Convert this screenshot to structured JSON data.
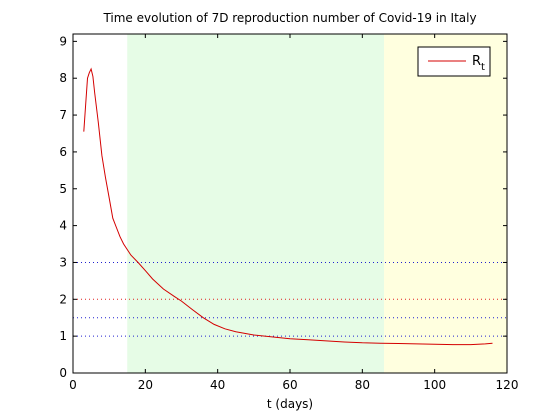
{
  "chart_data": {
    "type": "line",
    "title": "Time evolution of 7D reproduction number of Covid-19 in Italy",
    "xlabel": "t (days)",
    "ylabel": "",
    "xlim": [
      0,
      120
    ],
    "ylim": [
      0,
      9.2
    ],
    "xticks": [
      0,
      20,
      40,
      60,
      80,
      100,
      120
    ],
    "yticks": [
      0,
      1,
      2,
      3,
      4,
      5,
      6,
      7,
      8,
      9
    ],
    "grid": false,
    "legend_position": "top-right",
    "legend": {
      "base": "R",
      "subscript": "t"
    },
    "shaded_regions": [
      {
        "x_start": 15,
        "x_end": 86,
        "color": "#e6fce6"
      },
      {
        "x_start": 86,
        "x_end": 120,
        "color": "#ffffdf"
      }
    ],
    "reference_lines": [
      {
        "y": 3,
        "color": "#2020d0",
        "style": "dotted"
      },
      {
        "y": 2,
        "color": "#e02020",
        "style": "dotted"
      },
      {
        "y": 1.5,
        "color": "#2020d0",
        "style": "dotted"
      },
      {
        "y": 1,
        "color": "#2020d0",
        "style": "dotted"
      }
    ],
    "series": [
      {
        "color": "#d40000",
        "x": [
          3,
          3.5,
          4,
          4.5,
          5,
          5.5,
          6,
          7,
          8,
          9,
          10,
          11,
          12,
          13,
          14,
          15,
          16,
          18,
          20,
          22,
          25,
          28,
          30,
          33,
          36,
          39,
          42,
          45,
          50,
          55,
          60,
          65,
          70,
          75,
          80,
          85,
          90,
          95,
          100,
          105,
          110,
          114,
          116
        ],
        "y": [
          6.55,
          7.3,
          8.0,
          8.15,
          8.25,
          8.05,
          7.6,
          6.8,
          5.9,
          5.3,
          4.75,
          4.2,
          3.95,
          3.7,
          3.5,
          3.35,
          3.2,
          3.0,
          2.78,
          2.55,
          2.28,
          2.08,
          1.95,
          1.72,
          1.5,
          1.32,
          1.2,
          1.12,
          1.03,
          0.98,
          0.93,
          0.9,
          0.87,
          0.84,
          0.82,
          0.81,
          0.8,
          0.79,
          0.78,
          0.77,
          0.77,
          0.79,
          0.81
        ]
      }
    ]
  }
}
